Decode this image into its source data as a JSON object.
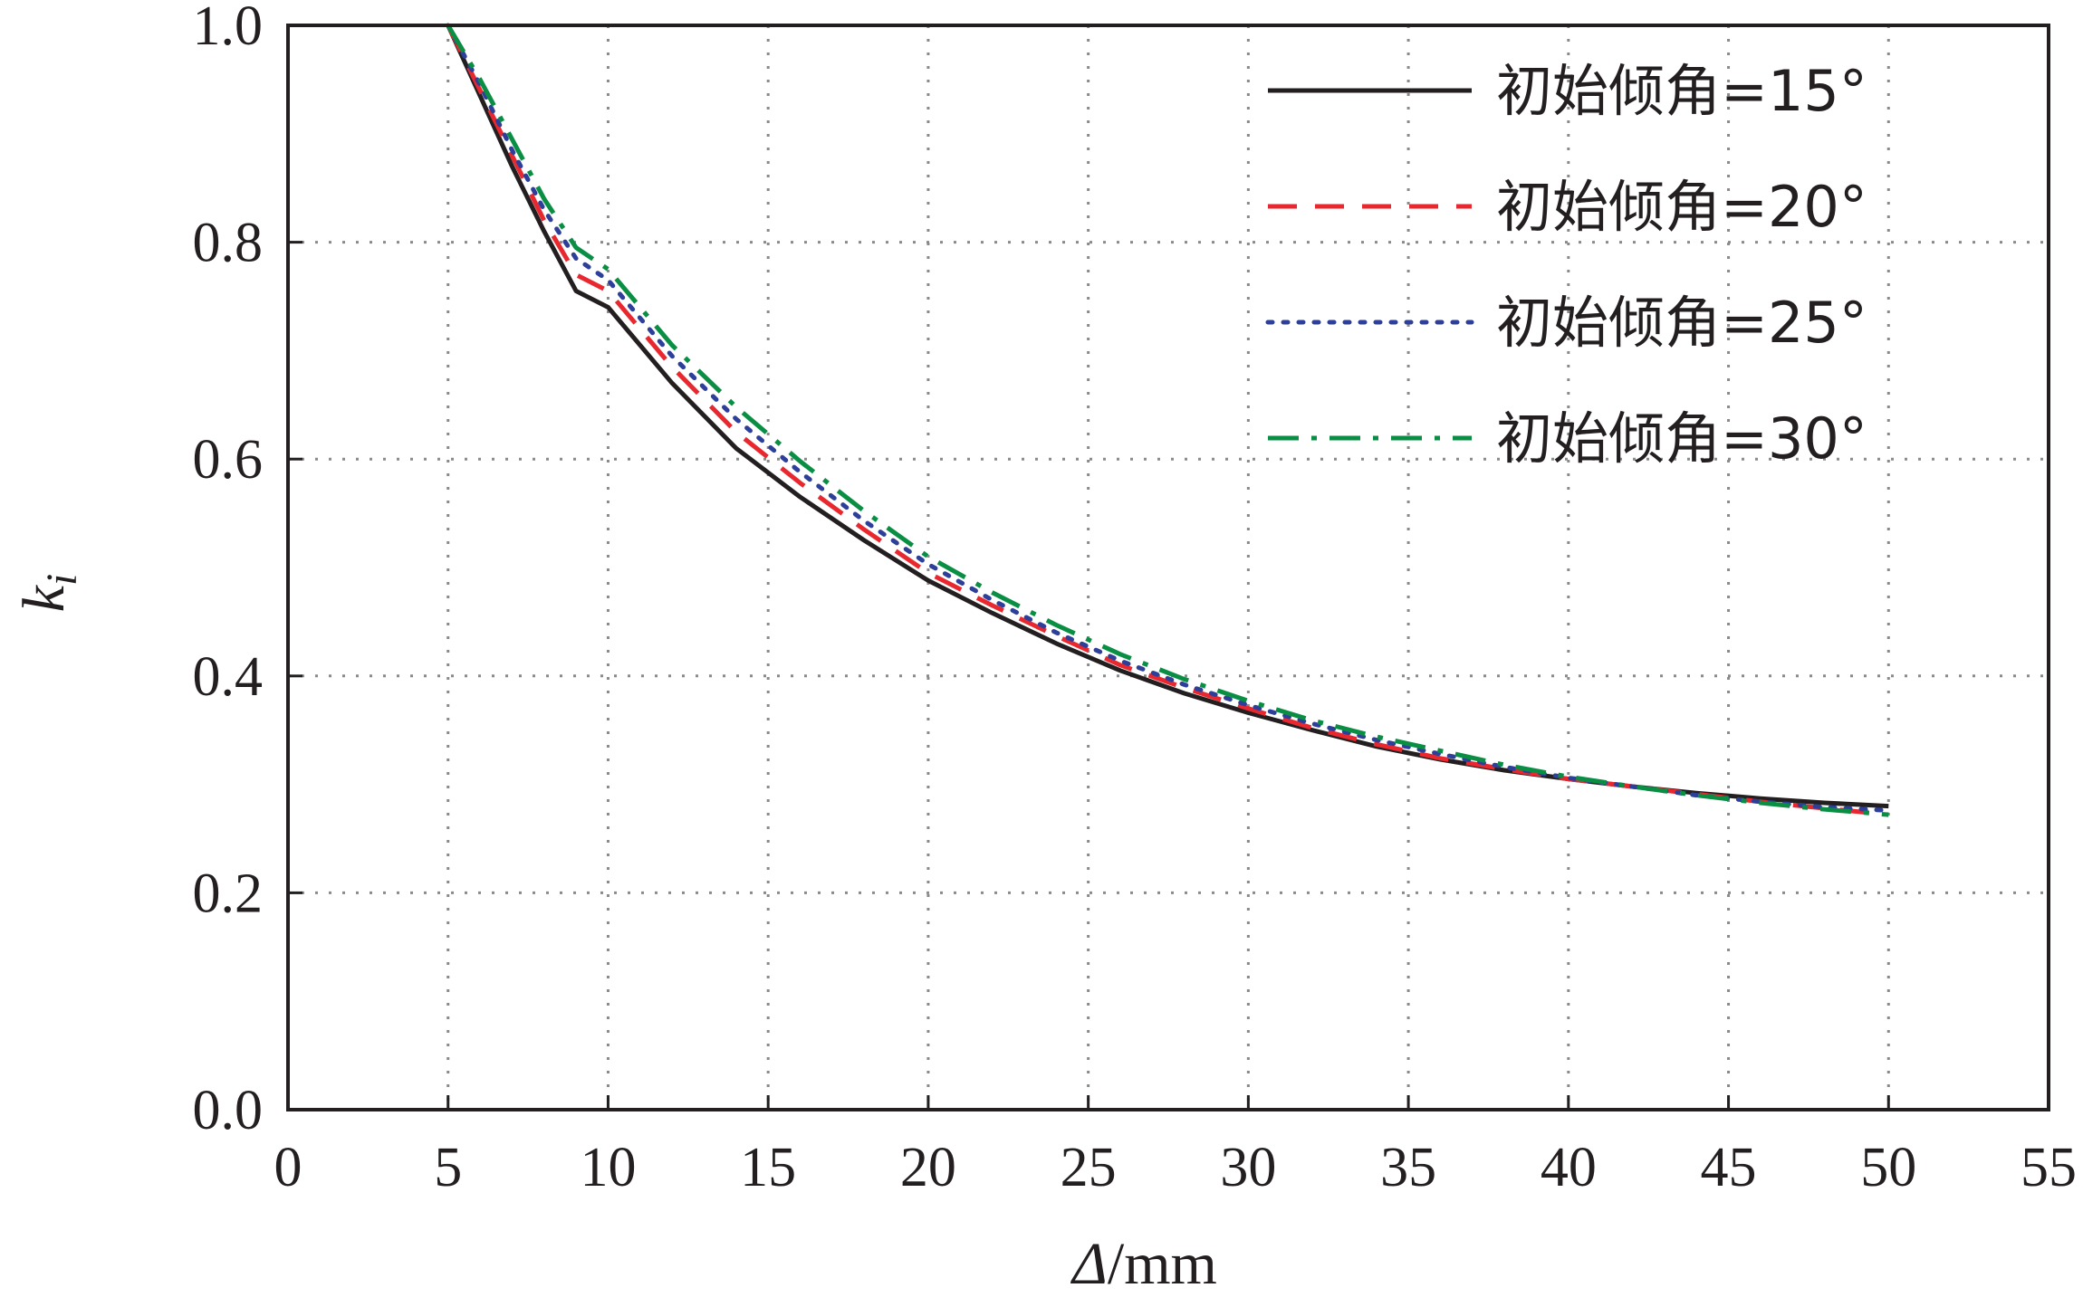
{
  "chart_data": {
    "type": "line",
    "xlabel": {
      "symbol": "Δ",
      "unit": "/mm"
    },
    "ylabel": {
      "symbol": "k",
      "subscript": "i"
    },
    "xlim": [
      0,
      55
    ],
    "ylim": [
      0.0,
      1.0
    ],
    "x_ticks": [
      "0",
      "5",
      "10",
      "15",
      "20",
      "25",
      "30",
      "35",
      "40",
      "45",
      "50",
      "55"
    ],
    "y_ticks": [
      "0.0",
      "0.2",
      "0.4",
      "0.6",
      "0.8",
      "1.0"
    ],
    "grid": true,
    "legend_position": "top-right",
    "x": [
      5,
      6,
      7,
      8,
      9,
      10,
      12,
      14,
      16,
      18,
      20,
      22,
      24,
      26,
      28,
      30,
      32,
      34,
      36,
      38,
      40,
      42,
      44,
      46,
      48,
      50
    ],
    "series": [
      {
        "name": "初始倾角=15°",
        "color": "#231f20",
        "dash": "solid",
        "values": [
          1.0,
          0.935,
          0.87,
          0.81,
          0.755,
          0.74,
          0.67,
          0.61,
          0.565,
          0.525,
          0.488,
          0.458,
          0.43,
          0.405,
          0.384,
          0.366,
          0.35,
          0.335,
          0.323,
          0.313,
          0.305,
          0.298,
          0.292,
          0.287,
          0.283,
          0.28
        ]
      },
      {
        "name": "初始倾角=20°",
        "color": "#e8282e",
        "dash": "dash",
        "values": [
          1.0,
          0.94,
          0.88,
          0.82,
          0.77,
          0.755,
          0.685,
          0.625,
          0.578,
          0.535,
          0.495,
          0.465,
          0.437,
          0.41,
          0.389,
          0.37,
          0.352,
          0.337,
          0.324,
          0.314,
          0.305,
          0.298,
          0.291,
          0.284,
          0.278,
          0.272
        ]
      },
      {
        "name": "初始倾角=25°",
        "color": "#2e3f99",
        "dash": "dot",
        "values": [
          1.0,
          0.945,
          0.885,
          0.83,
          0.785,
          0.765,
          0.695,
          0.637,
          0.588,
          0.543,
          0.503,
          0.47,
          0.44,
          0.414,
          0.392,
          0.373,
          0.356,
          0.341,
          0.328,
          0.316,
          0.306,
          0.298,
          0.29,
          0.284,
          0.279,
          0.276
        ]
      },
      {
        "name": "初始倾角=30°",
        "color": "#0a8e44",
        "dash": "dashdot",
        "values": [
          1.0,
          0.95,
          0.895,
          0.84,
          0.795,
          0.775,
          0.705,
          0.648,
          0.598,
          0.552,
          0.51,
          0.477,
          0.447,
          0.42,
          0.397,
          0.377,
          0.359,
          0.344,
          0.331,
          0.318,
          0.307,
          0.298,
          0.29,
          0.283,
          0.277,
          0.272
        ]
      }
    ]
  }
}
